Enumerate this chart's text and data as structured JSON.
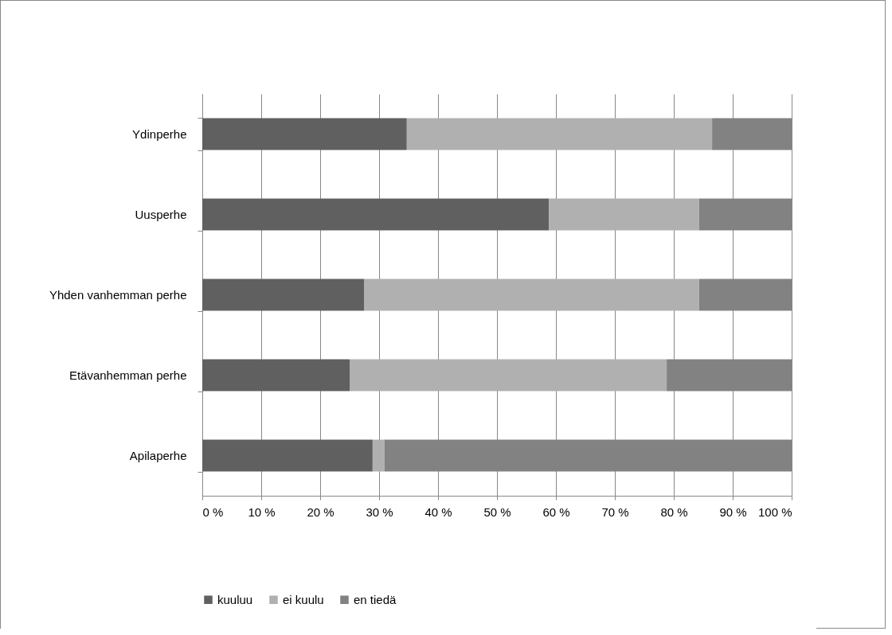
{
  "chart_data": {
    "type": "bar",
    "orientation": "horizontal",
    "stacked": true,
    "categories": [
      "Ydinperhe",
      "Uusperhe",
      "Yhden vanhemman perhe",
      "Etävanhemman perhe",
      "Apilaperhe"
    ],
    "series": [
      {
        "name": "kuuluu",
        "color": "#606060",
        "values": [
          34.7,
          58.8,
          27.5,
          25.0,
          28.9
        ]
      },
      {
        "name": "ei kuulu",
        "color": "#b0b0b0",
        "values": [
          51.8,
          25.5,
          56.8,
          53.8,
          2.0
        ]
      },
      {
        "name": "en tiedä",
        "color": "#828282",
        "values": [
          13.5,
          15.7,
          15.7,
          21.2,
          69.1
        ]
      }
    ],
    "xlim": [
      0,
      100
    ],
    "xticks": [
      {
        "value": 0,
        "label": "0 %"
      },
      {
        "value": 10,
        "label": "10 %"
      },
      {
        "value": 20,
        "label": "20 %"
      },
      {
        "value": 30,
        "label": "30 %"
      },
      {
        "value": 40,
        "label": "40 %"
      },
      {
        "value": 50,
        "label": "50 %"
      },
      {
        "value": 60,
        "label": "60 %"
      },
      {
        "value": 70,
        "label": "70 %"
      },
      {
        "value": 80,
        "label": "80 %"
      },
      {
        "value": 90,
        "label": "90 %"
      },
      {
        "value": 100,
        "label": "100 %"
      }
    ],
    "grid": "x",
    "legend": "bottom"
  }
}
